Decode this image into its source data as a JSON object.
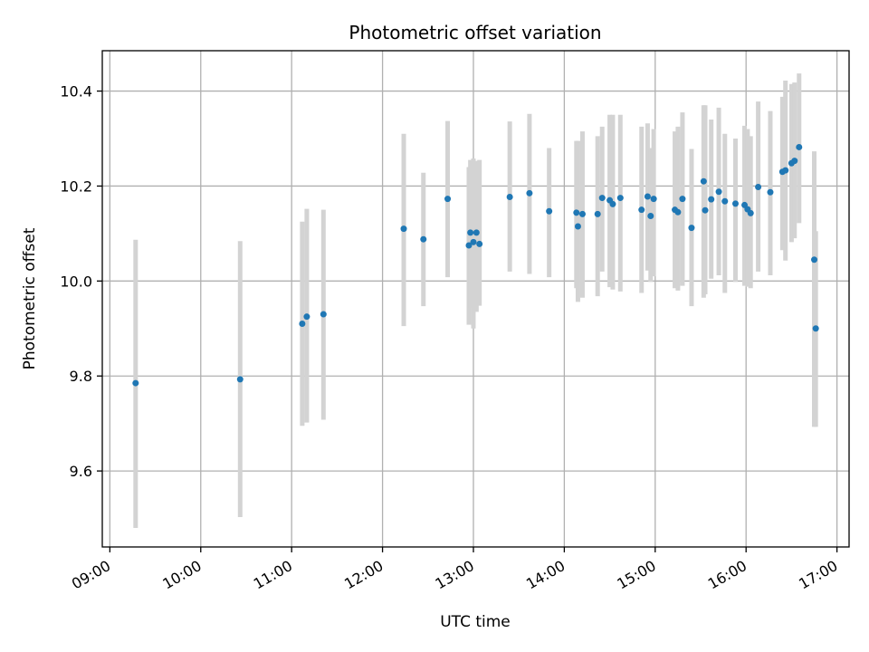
{
  "chart_data": {
    "type": "scatter",
    "title": "Photometric offset variation",
    "xlabel": "UTC time",
    "ylabel": "Photometric offset",
    "xlim": [
      "08:55",
      "17:08"
    ],
    "ylim": [
      9.44,
      10.485
    ],
    "x_ticks": [
      "09:00",
      "10:00",
      "11:00",
      "12:00",
      "13:00",
      "14:00",
      "15:00",
      "16:00",
      "17:00"
    ],
    "y_ticks": [
      9.6,
      9.8,
      10.0,
      10.2,
      10.4
    ],
    "y_tick_labels": [
      "9.6",
      "9.8",
      "10.0",
      "10.2",
      "10.4"
    ],
    "grid": true,
    "colors": {
      "points": "#1f77b4",
      "errorbars": "#d3d3d3"
    },
    "series": [
      {
        "x": [
          "09:17",
          "10:26",
          "11:07",
          "11:10",
          "11:21",
          "12:14",
          "12:27",
          "12:43",
          "12:57",
          "12:58",
          "13:00",
          "13:02",
          "13:04",
          "13:24",
          "13:37",
          "13:50",
          "14:08",
          "14:09",
          "14:12",
          "14:22",
          "14:25",
          "14:30",
          "14:32",
          "14:37",
          "14:51",
          "14:55",
          "14:57",
          "14:59",
          "15:13",
          "15:15",
          "15:18",
          "15:24",
          "15:32",
          "15:33",
          "15:37",
          "15:42",
          "15:46",
          "15:53",
          "15:59",
          "16:01",
          "16:03",
          "16:08",
          "16:16",
          "16:24",
          "16:26",
          "16:30",
          "16:32",
          "16:35",
          "16:45",
          "16:46"
        ],
        "y": [
          9.785,
          9.793,
          9.91,
          9.925,
          9.93,
          10.11,
          10.088,
          10.173,
          10.075,
          10.102,
          10.082,
          10.102,
          10.078,
          10.177,
          10.185,
          10.147,
          10.144,
          10.115,
          10.141,
          10.141,
          10.175,
          10.17,
          10.162,
          10.175,
          10.15,
          10.178,
          10.137,
          10.173,
          10.15,
          10.145,
          10.173,
          10.112,
          10.21,
          10.149,
          10.172,
          10.188,
          10.168,
          10.163,
          10.16,
          10.151,
          10.143,
          10.198,
          10.187,
          10.23,
          10.233,
          10.248,
          10.253,
          10.282,
          10.045,
          9.9
        ],
        "err_low": [
          9.48,
          9.503,
          9.695,
          9.702,
          9.708,
          9.905,
          9.947,
          10.008,
          9.908,
          9.943,
          9.9,
          9.935,
          9.948,
          10.02,
          10.015,
          10.008,
          9.985,
          9.956,
          9.965,
          9.968,
          10.02,
          9.987,
          9.982,
          9.978,
          9.975,
          10.022,
          9.998,
          10.01,
          9.985,
          9.98,
          9.99,
          9.947,
          9.965,
          9.972,
          10.005,
          10.012,
          9.975,
          9.998,
          9.99,
          9.988,
          9.985,
          10.02,
          10.012,
          10.065,
          10.043,
          10.082,
          10.09,
          10.122,
          9.693,
          9.693
        ],
        "err_high": [
          10.087,
          10.084,
          10.125,
          10.152,
          10.15,
          10.31,
          10.228,
          10.337,
          10.24,
          10.255,
          10.258,
          10.253,
          10.255,
          10.336,
          10.352,
          10.28,
          10.295,
          10.295,
          10.315,
          10.305,
          10.325,
          10.35,
          10.35,
          10.35,
          10.325,
          10.332,
          10.28,
          10.32,
          10.315,
          10.325,
          10.355,
          10.278,
          10.37,
          10.37,
          10.34,
          10.365,
          10.31,
          10.3,
          10.327,
          10.32,
          10.305,
          10.378,
          10.358,
          10.388,
          10.422,
          10.415,
          10.418,
          10.437,
          10.273,
          10.105
        ]
      }
    ]
  }
}
